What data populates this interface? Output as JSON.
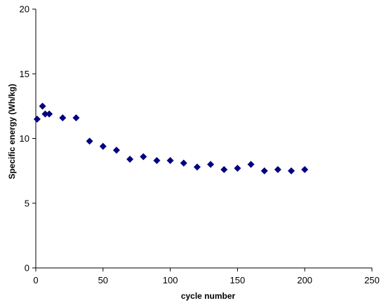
{
  "chart_data": {
    "type": "scatter",
    "title": "",
    "xlabel": "cycle number",
    "ylabel": "Specific energy (Wh/kg)",
    "xlim": [
      0,
      250
    ],
    "ylim": [
      0,
      20
    ],
    "x_ticks": [
      0,
      50,
      100,
      150,
      200,
      250
    ],
    "y_ticks": [
      0,
      5,
      10,
      15,
      20
    ],
    "grid": false,
    "legend": "none",
    "marker": "diamond",
    "marker_color": "#00007f",
    "series": [
      {
        "x": [
          1,
          5,
          7,
          10,
          20,
          30,
          40,
          50,
          60,
          70,
          80,
          90,
          100,
          110,
          120,
          130,
          140,
          150,
          160,
          170,
          180,
          190,
          200
        ],
        "y": [
          11.5,
          12.5,
          11.9,
          11.9,
          11.6,
          11.6,
          9.8,
          9.4,
          9.1,
          8.4,
          8.6,
          8.3,
          8.3,
          8.1,
          7.8,
          8.0,
          7.6,
          7.7,
          8.0,
          7.5,
          7.6,
          7.5,
          7.6
        ]
      }
    ]
  }
}
